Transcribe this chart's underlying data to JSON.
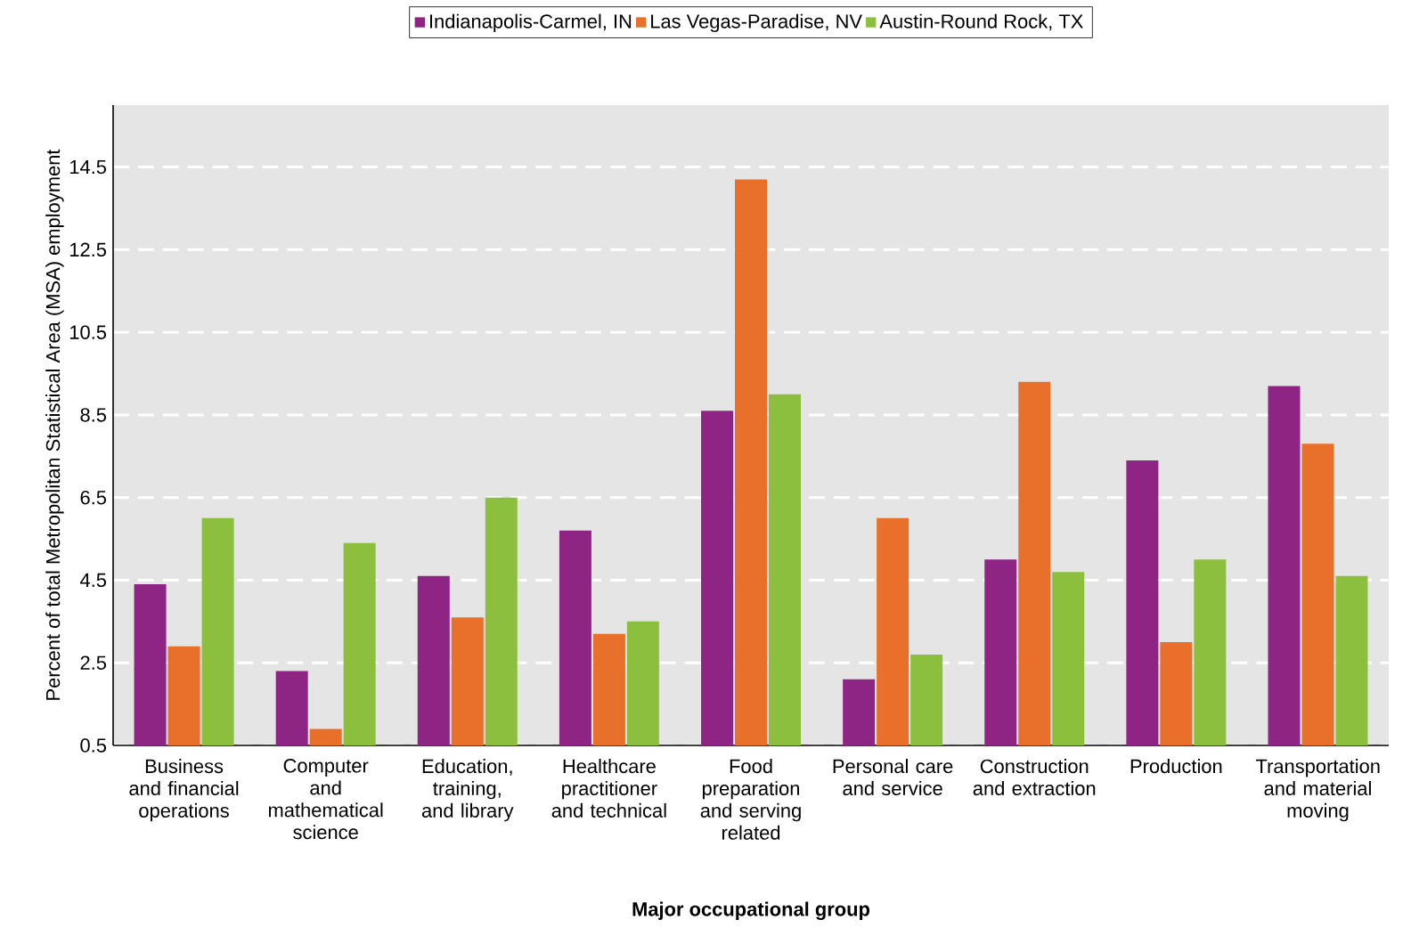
{
  "chart_data": {
    "type": "bar",
    "xlabel": "Major occupational group",
    "ylabel": "Percent of total Metropolitan Statistical Area (MSA) employment",
    "categories": [
      "Business and financial operations",
      "Computer and mathematical science",
      "Education, training, and library",
      "Healthcare practitioner and technical",
      "Food preparation and serving related",
      "Personal care and service",
      "Construction and extraction",
      "Production",
      "Transportation and material moving"
    ],
    "series": [
      {
        "name": "Indianapolis-Carmel, IN",
        "color": "#8e2585",
        "values": [
          4.4,
          2.3,
          4.6,
          5.7,
          8.6,
          2.1,
          5.0,
          7.4,
          9.2
        ]
      },
      {
        "name": "Las Vegas-Paradise, NV",
        "color": "#e8702a",
        "values": [
          2.9,
          0.9,
          3.6,
          3.2,
          14.2,
          6.0,
          9.3,
          3.0,
          7.8
        ]
      },
      {
        "name": "Austin-Round Rock, TX",
        "color": "#8dbf3f",
        "values": [
          6.0,
          5.4,
          6.5,
          3.5,
          9.0,
          2.7,
          4.7,
          5.0,
          4.6
        ]
      }
    ],
    "ylim": [
      0.5,
      16
    ],
    "yticks": [
      0.5,
      2.5,
      4.5,
      6.5,
      8.5,
      10.5,
      12.5,
      14.5
    ],
    "grid": "y",
    "legend": "top"
  }
}
